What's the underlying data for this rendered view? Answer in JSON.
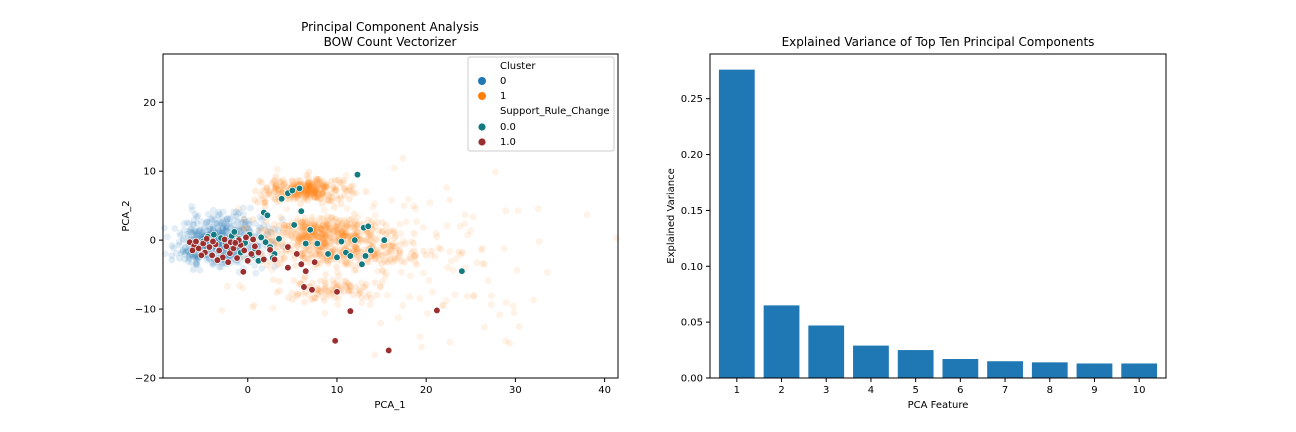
{
  "colors": {
    "cluster_0": "#1f77b4",
    "cluster_1": "#ff7f0e",
    "support_0": "#137a7f",
    "support_1": "#9b2e2e",
    "bar": "#1f77b4"
  },
  "chart_data": [
    {
      "type": "scatter",
      "title": "Principal Component Analysis",
      "subtitle": "BOW Count Vectorizer",
      "xlabel": "PCA_1",
      "ylabel": "PCA_2",
      "xlim": [
        -9.5,
        41.5
      ],
      "ylim": [
        -20,
        27
      ],
      "xticks": [
        0,
        10,
        20,
        30,
        40
      ],
      "yticks": [
        -20,
        -10,
        0,
        10,
        20
      ],
      "grid": false,
      "legend_position": "top-right",
      "legend": {
        "groups": [
          {
            "title": "Cluster",
            "entries": [
              {
                "label": "0",
                "color_key": "cluster_0"
              },
              {
                "label": "1",
                "color_key": "cluster_1"
              }
            ]
          },
          {
            "title": "Support_Rule_Change",
            "entries": [
              {
                "label": "0.0",
                "color_key": "support_0"
              },
              {
                "label": "1.0",
                "color_key": "support_1"
              }
            ]
          }
        ]
      },
      "series": [
        {
          "name": "0.0",
          "color_key": "support_0",
          "points": [
            [
              -4.5,
              0.5
            ],
            [
              -3.8,
              0.8
            ],
            [
              -3.0,
              0.3
            ],
            [
              -2.5,
              -0.5
            ],
            [
              -1.8,
              0.6
            ],
            [
              -1.0,
              0.2
            ],
            [
              -0.3,
              -0.4
            ],
            [
              0.2,
              0.8
            ],
            [
              0.8,
              -1.2
            ],
            [
              1.5,
              0.4
            ],
            [
              2.0,
              -0.3
            ],
            [
              2.5,
              -1.0
            ],
            [
              3.0,
              -2.0
            ],
            [
              3.5,
              0.2
            ],
            [
              1.8,
              4.0
            ],
            [
              2.2,
              3.6
            ],
            [
              3.8,
              6.0
            ],
            [
              4.5,
              6.8
            ],
            [
              5.0,
              7.2
            ],
            [
              5.8,
              7.5
            ],
            [
              5.2,
              2.2
            ],
            [
              6.0,
              4.2
            ],
            [
              6.5,
              -0.5
            ],
            [
              7.0,
              1.5
            ],
            [
              7.8,
              -0.5
            ],
            [
              9.0,
              -2.0
            ],
            [
              10.0,
              -2.5
            ],
            [
              10.5,
              -0.2
            ],
            [
              11.0,
              -1.8
            ],
            [
              11.5,
              -2.3
            ],
            [
              12.0,
              0.0
            ],
            [
              12.3,
              9.5
            ],
            [
              13.0,
              1.8
            ],
            [
              13.5,
              2.0
            ],
            [
              13.8,
              -1.5
            ],
            [
              13.2,
              -2.3
            ],
            [
              12.8,
              -3.5
            ],
            [
              15.3,
              0.0
            ],
            [
              24.0,
              -4.5
            ],
            [
              -2.2,
              -1.0
            ],
            [
              -0.8,
              -1.8
            ],
            [
              0.5,
              -2.2
            ],
            [
              1.2,
              -3.0
            ],
            [
              -5.0,
              -0.2
            ],
            [
              -3.3,
              -1.6
            ],
            [
              2.8,
              -2.6
            ],
            [
              -1.5,
              1.2
            ]
          ]
        },
        {
          "name": "1.0",
          "color_key": "support_1",
          "points": [
            [
              -6.5,
              -0.3
            ],
            [
              -6.0,
              -0.8
            ],
            [
              -5.5,
              -1.2
            ],
            [
              -5.0,
              -0.5
            ],
            [
              -4.8,
              -1.8
            ],
            [
              -4.3,
              -1.0
            ],
            [
              -4.0,
              -2.2
            ],
            [
              -3.6,
              -0.6
            ],
            [
              -3.2,
              -1.5
            ],
            [
              -2.8,
              -2.5
            ],
            [
              -2.4,
              -0.9
            ],
            [
              -2.0,
              -1.9
            ],
            [
              -1.6,
              -1.2
            ],
            [
              -1.2,
              -2.6
            ],
            [
              -0.8,
              -0.7
            ],
            [
              -0.4,
              -1.5
            ],
            [
              0.0,
              -3.0
            ],
            [
              0.4,
              -2.0
            ],
            [
              0.8,
              -0.9
            ],
            [
              1.2,
              -1.8
            ],
            [
              -0.5,
              -4.6
            ],
            [
              1.8,
              -2.8
            ],
            [
              2.5,
              -1.4
            ],
            [
              3.0,
              -2.8
            ],
            [
              4.5,
              -1.0
            ],
            [
              4.5,
              -4.0
            ],
            [
              5.5,
              -2.0
            ],
            [
              6.0,
              -3.5
            ],
            [
              6.5,
              -4.5
            ],
            [
              7.5,
              -3.2
            ],
            [
              6.3,
              -6.8
            ],
            [
              7.2,
              -7.2
            ],
            [
              10.0,
              -7.5
            ],
            [
              11.5,
              -10.3
            ],
            [
              9.8,
              -14.6
            ],
            [
              15.8,
              -16.0
            ],
            [
              21.2,
              -10.2
            ],
            [
              -5.8,
              -0.2
            ],
            [
              -4.6,
              0.2
            ],
            [
              -3.9,
              -0.2
            ],
            [
              -2.6,
              0.1
            ],
            [
              -1.9,
              -0.3
            ],
            [
              -1.0,
              0.0
            ],
            [
              -0.2,
              0.4
            ],
            [
              0.6,
              0.1
            ],
            [
              -3.4,
              -2.9
            ],
            [
              -2.2,
              -3.2
            ],
            [
              -5.2,
              -2.2
            ],
            [
              -6.2,
              -1.5
            ],
            [
              -1.4,
              -0.4
            ]
          ]
        }
      ]
    },
    {
      "type": "bar",
      "title": "Explained Variance of Top Ten Principal Components",
      "xlabel": "PCA Feature",
      "ylabel": "Explained Variance",
      "categories": [
        "1",
        "2",
        "3",
        "4",
        "5",
        "6",
        "7",
        "8",
        "9",
        "10"
      ],
      "values": [
        0.276,
        0.065,
        0.047,
        0.029,
        0.025,
        0.017,
        0.015,
        0.014,
        0.013,
        0.013
      ],
      "ylim": [
        0,
        0.29
      ],
      "yticks": [
        "0.00",
        "0.05",
        "0.10",
        "0.15",
        "0.20",
        "0.25"
      ],
      "grid": false
    }
  ]
}
